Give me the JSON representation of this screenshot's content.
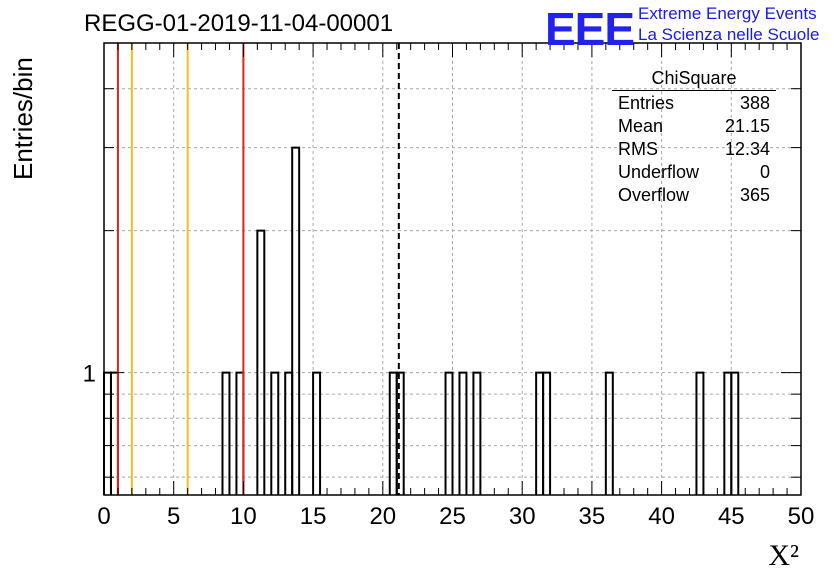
{
  "header": {
    "title": "REGG-01-2019-11-04-00001",
    "logo_text": "EEE",
    "logo_line1": "Extreme Energy Events",
    "logo_line2": "La Scienza nelle Scuole"
  },
  "stats_box": {
    "name": "ChiSquare",
    "rows": [
      {
        "label": "Entries",
        "value": "388"
      },
      {
        "label": "Mean",
        "value": "21.15"
      },
      {
        "label": "RMS",
        "value": "12.34"
      },
      {
        "label": "Underflow",
        "value": "0"
      },
      {
        "label": "Overflow",
        "value": "365"
      }
    ]
  },
  "chart_data": {
    "type": "histogram",
    "title": "REGG-01-2019-11-04-00001",
    "xlabel": "X²",
    "ylabel": "Entries/bin",
    "xlim": [
      0,
      50
    ],
    "y_scale": "log",
    "ylim": [
      0.55,
      5.0
    ],
    "grid": true,
    "bin_width": 0.5,
    "x_ticks": [
      "0",
      "5",
      "10",
      "15",
      "20",
      "25",
      "30",
      "35",
      "40",
      "45",
      "50"
    ],
    "y_tick_labels": [
      {
        "value": 1,
        "label": "1"
      }
    ],
    "bins": [
      {
        "x": 0.0,
        "count": 1
      },
      {
        "x": 0.5,
        "count": 1
      },
      {
        "x": 8.5,
        "count": 1
      },
      {
        "x": 9.5,
        "count": 1
      },
      {
        "x": 11.0,
        "count": 2
      },
      {
        "x": 12.0,
        "count": 1
      },
      {
        "x": 13.0,
        "count": 1
      },
      {
        "x": 13.5,
        "count": 3
      },
      {
        "x": 15.0,
        "count": 1
      },
      {
        "x": 20.5,
        "count": 1
      },
      {
        "x": 21.0,
        "count": 1
      },
      {
        "x": 24.5,
        "count": 1
      },
      {
        "x": 25.5,
        "count": 1
      },
      {
        "x": 26.5,
        "count": 1
      },
      {
        "x": 31.0,
        "count": 1
      },
      {
        "x": 31.5,
        "count": 1
      },
      {
        "x": 36.0,
        "count": 1
      },
      {
        "x": 42.5,
        "count": 1
      },
      {
        "x": 44.5,
        "count": 1
      },
      {
        "x": 45.0,
        "count": 1
      }
    ],
    "reference_lines": [
      {
        "x": 1.0,
        "color": "#dd2222",
        "style": "solid"
      },
      {
        "x": 2.0,
        "color": "#f0c020",
        "style": "solid"
      },
      {
        "x": 6.0,
        "color": "#f0c020",
        "style": "solid"
      },
      {
        "x": 10.0,
        "color": "#dd2222",
        "style": "solid"
      },
      {
        "x": 21.15,
        "color": "#000000",
        "style": "dashed"
      }
    ]
  }
}
